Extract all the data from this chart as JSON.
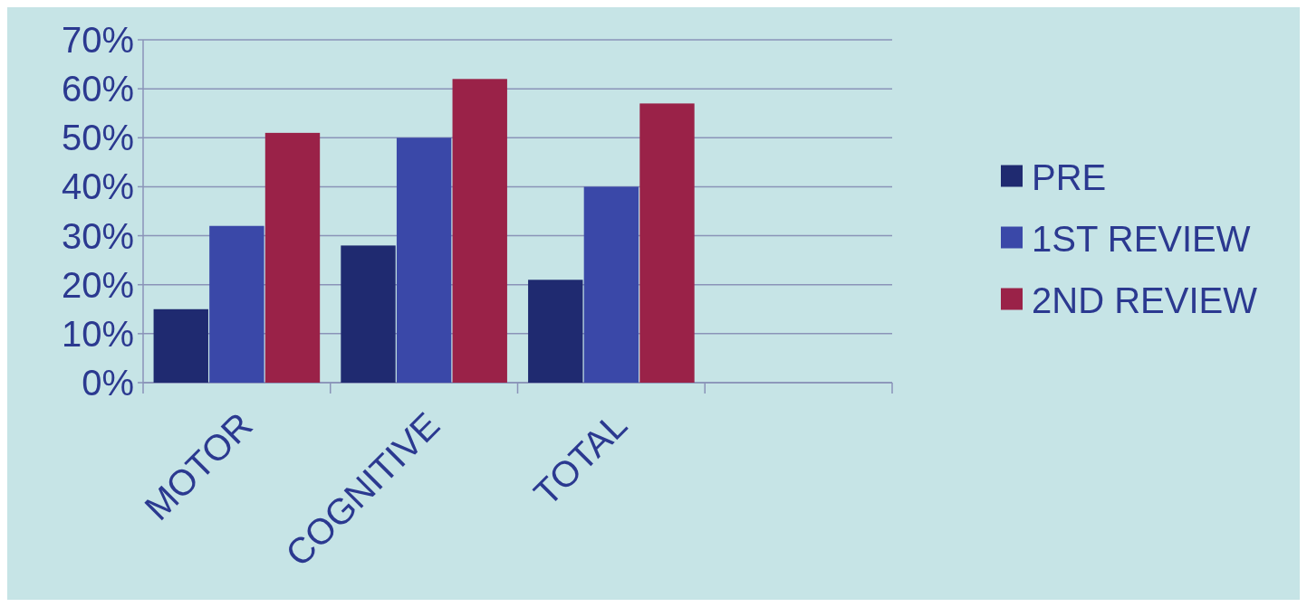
{
  "chart_data": {
    "type": "bar",
    "categories": [
      "MOTOR",
      "COGNITIVE",
      "TOTAL",
      null
    ],
    "series": [
      {
        "name": "PRE",
        "color": "#1f2a70",
        "values": [
          15,
          28,
          21,
          null
        ]
      },
      {
        "name": "1ST REVIEW",
        "color": "#3a48a8",
        "values": [
          32,
          50,
          40,
          null
        ]
      },
      {
        "name": "2ND REVIEW",
        "color": "#9a2248",
        "values": [
          51,
          62,
          57,
          null
        ]
      }
    ],
    "ylim": [
      0,
      70
    ],
    "yticks": [
      {
        "value": 0,
        "label": "0%"
      },
      {
        "value": 10,
        "label": "10%"
      },
      {
        "value": 20,
        "label": "20%"
      },
      {
        "value": 30,
        "label": "30%"
      },
      {
        "value": 40,
        "label": "40%"
      },
      {
        "value": 50,
        "label": "50%"
      },
      {
        "value": 60,
        "label": "60%"
      },
      {
        "value": 70,
        "label": "70%"
      }
    ],
    "grid": "y",
    "legend": "right"
  }
}
